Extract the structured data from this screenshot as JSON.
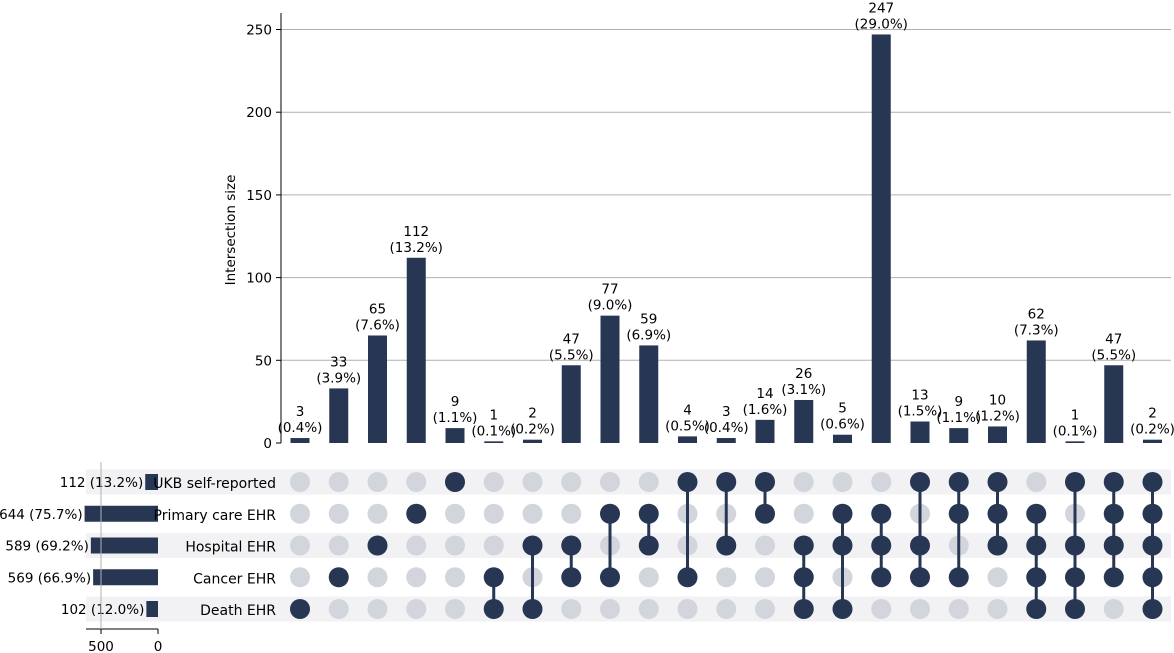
{
  "chart_data": {
    "type": "upset",
    "ylabel": "Intersection size",
    "ylim": [
      0,
      260
    ],
    "yticks": [
      0,
      50,
      100,
      150,
      200,
      250
    ],
    "grid": true,
    "colors": {
      "bar": "#273653",
      "dot_active": "#273653",
      "dot_inactive": "#d2d5dc",
      "stripe": "#f2f2f4",
      "grid": "#b0b0b0"
    },
    "sets": [
      {
        "name": "UKB self-reported",
        "size": 112,
        "label": "112 (13.2%)"
      },
      {
        "name": "Primary care EHR",
        "size": 644,
        "label": "644 (75.7%)"
      },
      {
        "name": "Hospital EHR",
        "size": 589,
        "label": "589 (69.2%)"
      },
      {
        "name": "Cancer EHR",
        "size": 569,
        "label": "569 (66.9%)"
      },
      {
        "name": "Death EHR",
        "size": 102,
        "label": "102 (12.0%)"
      }
    ],
    "set_size_axis": {
      "ticks": [
        500,
        0
      ],
      "max": 644
    },
    "intersections": [
      {
        "value": 3,
        "count_label": "3",
        "pct_label": "(0.4%)",
        "members": [
          4
        ]
      },
      {
        "value": 33,
        "count_label": "33",
        "pct_label": "(3.9%)",
        "members": [
          3
        ]
      },
      {
        "value": 65,
        "count_label": "65",
        "pct_label": "(7.6%)",
        "members": [
          2
        ]
      },
      {
        "value": 112,
        "count_label": "112",
        "pct_label": "(13.2%)",
        "members": [
          1
        ]
      },
      {
        "value": 9,
        "count_label": "9",
        "pct_label": "(1.1%)",
        "members": [
          0
        ]
      },
      {
        "value": 1,
        "count_label": "1",
        "pct_label": "(0.1%)",
        "members": [
          3,
          4
        ]
      },
      {
        "value": 2,
        "count_label": "2",
        "pct_label": "(0.2%)",
        "members": [
          2,
          4
        ]
      },
      {
        "value": 47,
        "count_label": "47",
        "pct_label": "(5.5%)",
        "members": [
          2,
          3
        ]
      },
      {
        "value": 77,
        "count_label": "77",
        "pct_label": "(9.0%)",
        "members": [
          1,
          3
        ]
      },
      {
        "value": 59,
        "count_label": "59",
        "pct_label": "(6.9%)",
        "members": [
          1,
          2
        ]
      },
      {
        "value": 4,
        "count_label": "4",
        "pct_label": "(0.5%)",
        "members": [
          0,
          3
        ]
      },
      {
        "value": 3,
        "count_label": "3",
        "pct_label": "(0.4%)",
        "members": [
          0,
          2
        ]
      },
      {
        "value": 14,
        "count_label": "14",
        "pct_label": "(1.6%)",
        "members": [
          0,
          1
        ]
      },
      {
        "value": 26,
        "count_label": "26",
        "pct_label": "(3.1%)",
        "members": [
          2,
          3,
          4
        ]
      },
      {
        "value": 5,
        "count_label": "5",
        "pct_label": "(0.6%)",
        "members": [
          1,
          2,
          4
        ]
      },
      {
        "value": 247,
        "count_label": "247",
        "pct_label": "(29.0%)",
        "members": [
          1,
          2,
          3
        ]
      },
      {
        "value": 13,
        "count_label": "13",
        "pct_label": "(1.5%)",
        "members": [
          0,
          2,
          3
        ]
      },
      {
        "value": 9,
        "count_label": "9",
        "pct_label": "(1.1%)",
        "members": [
          0,
          1,
          3
        ]
      },
      {
        "value": 10,
        "count_label": "10",
        "pct_label": "(1.2%)",
        "members": [
          0,
          1,
          2
        ]
      },
      {
        "value": 62,
        "count_label": "62",
        "pct_label": "(7.3%)",
        "members": [
          1,
          2,
          3,
          4
        ]
      },
      {
        "value": 1,
        "count_label": "1",
        "pct_label": "(0.1%)",
        "members": [
          0,
          2,
          3,
          4
        ]
      },
      {
        "value": 47,
        "count_label": "47",
        "pct_label": "(5.5%)",
        "members": [
          0,
          1,
          2,
          3
        ]
      },
      {
        "value": 2,
        "count_label": "2",
        "pct_label": "(0.2%)",
        "members": [
          0,
          1,
          2,
          3,
          4
        ]
      }
    ]
  }
}
